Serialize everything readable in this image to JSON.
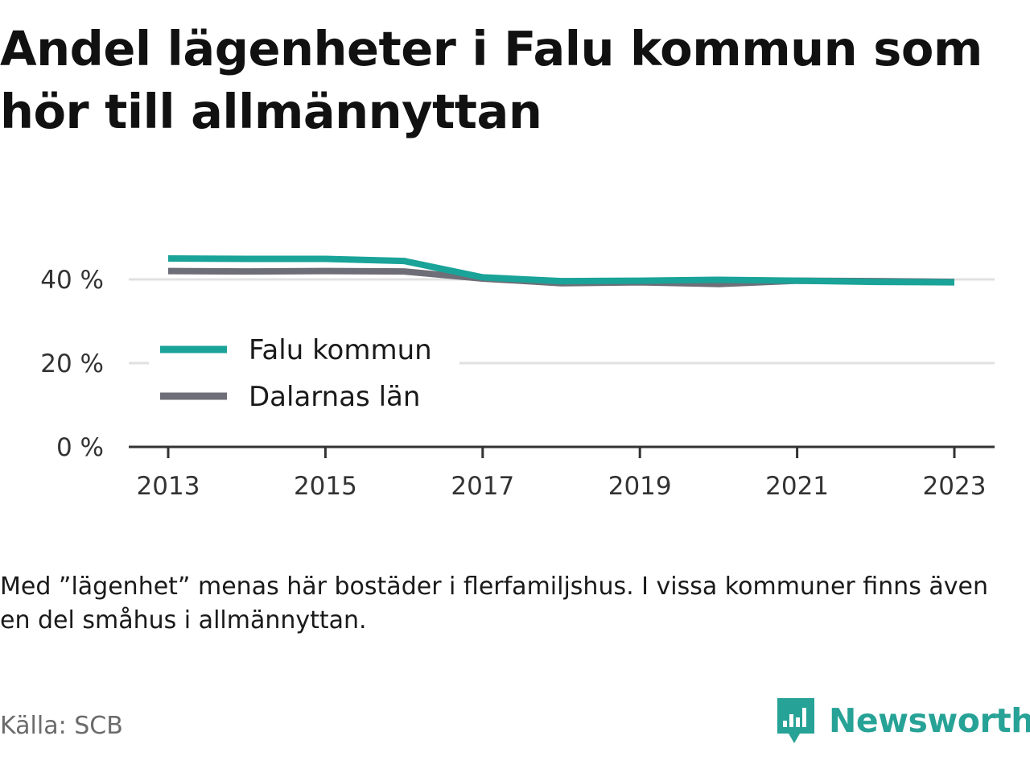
{
  "title": "Andel lägenheter i Falu kommun som hör till allmännyttan",
  "footnote": "Med ”lägenhet” menas här bostäder i flerfamiljshus. I vissa kommuner finns även en del småhus i allmännyttan.",
  "source": "Källa: SCB",
  "brand": "Newsworthy",
  "colors": {
    "falu": "#1aa398",
    "dalarna": "#6e6e78",
    "grid": "#e1e1e1",
    "axis": "#333333"
  },
  "chart_data": {
    "type": "line",
    "title": "Andel lägenheter i Falu kommun som hör till allmännyttan",
    "x": [
      2013,
      2014,
      2015,
      2016,
      2017,
      2018,
      2019,
      2020,
      2021,
      2022,
      2023
    ],
    "x_ticks": [
      "2013",
      "2015",
      "2017",
      "2019",
      "2021",
      "2023"
    ],
    "y_ticks": [
      "0 %",
      "20 %",
      "40 %"
    ],
    "y_tick_values": [
      0,
      20,
      40
    ],
    "ylim": [
      0,
      50
    ],
    "grid": true,
    "legend_position": "center-left",
    "series": [
      {
        "name": "Falu kommun",
        "color": "#1aa398",
        "values": [
          45.0,
          44.9,
          44.9,
          44.4,
          40.5,
          39.6,
          39.7,
          39.9,
          39.7,
          39.4,
          39.3
        ]
      },
      {
        "name": "Dalarnas län",
        "color": "#6e6e78",
        "values": [
          42.0,
          41.9,
          42.0,
          41.9,
          40.2,
          39.1,
          39.3,
          38.9,
          39.7,
          39.6,
          39.4
        ]
      }
    ]
  }
}
